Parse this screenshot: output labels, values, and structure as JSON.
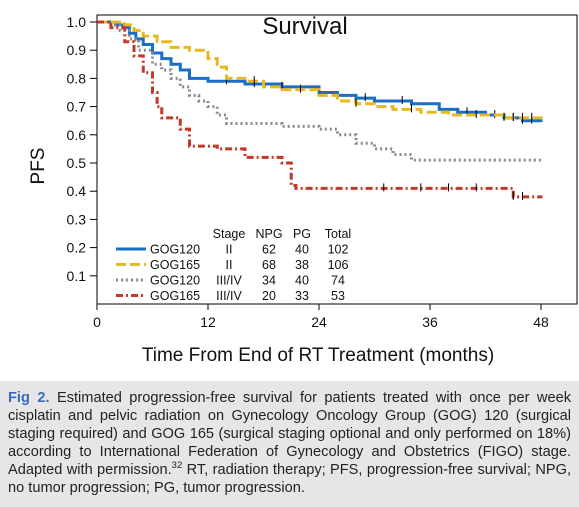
{
  "chart_data": {
    "type": "line",
    "title": "Survival",
    "xlabel": "Time From End of RT Treatment (months)",
    "ylabel": "PFS",
    "xlim": [
      0,
      48
    ],
    "ylim": [
      0,
      1.0
    ],
    "x_ticks": [
      "0",
      "12",
      "24",
      "36",
      "48"
    ],
    "y_ticks": [
      "0.1",
      "0.2",
      "0.3",
      "0.4",
      "0.5",
      "0.6",
      "0.7",
      "0.8",
      "0.9",
      "1.0"
    ],
    "grid": false,
    "legend_position": "lower-left",
    "legend_headers": [
      "Stage",
      "NPG",
      "PG",
      "Total"
    ],
    "series": [
      {
        "name": "GOG120",
        "stage": "II",
        "npg": "62",
        "pg": "40",
        "total": "102",
        "color": "#1a6fc4",
        "style": "solid",
        "points": [
          [
            0,
            1.0
          ],
          [
            2,
            0.99
          ],
          [
            2.8,
            0.98
          ],
          [
            3.5,
            0.96
          ],
          [
            4.2,
            0.94
          ],
          [
            5,
            0.92
          ],
          [
            6,
            0.89
          ],
          [
            7,
            0.87
          ],
          [
            8,
            0.85
          ],
          [
            9,
            0.83
          ],
          [
            10,
            0.8
          ],
          [
            12,
            0.79
          ],
          [
            16,
            0.78
          ],
          [
            20,
            0.77
          ],
          [
            24,
            0.75
          ],
          [
            26,
            0.74
          ],
          [
            28,
            0.73
          ],
          [
            30,
            0.72
          ],
          [
            34,
            0.71
          ],
          [
            37,
            0.69
          ],
          [
            39,
            0.68
          ],
          [
            42,
            0.67
          ],
          [
            44,
            0.66
          ],
          [
            46,
            0.65
          ],
          [
            48,
            0.645
          ]
        ],
        "censor": [
          14,
          17,
          20,
          29,
          33,
          40,
          43,
          45,
          46,
          47
        ]
      },
      {
        "name": "GOG165",
        "stage": "II",
        "npg": "68",
        "pg": "38",
        "total": "106",
        "color": "#e8b820",
        "style": "dashed",
        "points": [
          [
            0,
            1.0
          ],
          [
            3,
            0.99
          ],
          [
            4,
            0.97
          ],
          [
            5,
            0.95
          ],
          [
            6.5,
            0.93
          ],
          [
            8,
            0.91
          ],
          [
            10,
            0.9
          ],
          [
            12,
            0.87
          ],
          [
            13,
            0.84
          ],
          [
            14,
            0.8
          ],
          [
            16,
            0.79
          ],
          [
            18,
            0.77
          ],
          [
            20,
            0.76
          ],
          [
            24,
            0.74
          ],
          [
            26,
            0.72
          ],
          [
            28,
            0.71
          ],
          [
            30,
            0.7
          ],
          [
            32,
            0.69
          ],
          [
            35,
            0.68
          ],
          [
            38,
            0.67
          ],
          [
            41,
            0.67
          ],
          [
            44,
            0.66
          ],
          [
            48,
            0.655
          ]
        ],
        "censor": [
          17,
          22,
          28,
          34,
          41,
          44,
          45,
          46,
          47
        ]
      },
      {
        "name": "GOG120",
        "stage": "III/IV",
        "npg": "34",
        "pg": "40",
        "total": "74",
        "color": "#8a8a8a",
        "style": "dotted",
        "points": [
          [
            0,
            1.0
          ],
          [
            1.5,
            0.99
          ],
          [
            2.5,
            0.97
          ],
          [
            3.5,
            0.94
          ],
          [
            4.5,
            0.9
          ],
          [
            6,
            0.85
          ],
          [
            7,
            0.83
          ],
          [
            8,
            0.8
          ],
          [
            9,
            0.77
          ],
          [
            10,
            0.74
          ],
          [
            11,
            0.72
          ],
          [
            12,
            0.7
          ],
          [
            13,
            0.67
          ],
          [
            14,
            0.64
          ],
          [
            20,
            0.63
          ],
          [
            24,
            0.62
          ],
          [
            26,
            0.6
          ],
          [
            28,
            0.57
          ],
          [
            30,
            0.55
          ],
          [
            32,
            0.53
          ],
          [
            34,
            0.51
          ],
          [
            48,
            0.51
          ]
        ]
      },
      {
        "name": "GOG165",
        "stage": "III/IV",
        "npg": "20",
        "pg": "33",
        "total": "53",
        "color": "#c0392b",
        "style": "dash-dot",
        "points": [
          [
            0,
            1.0
          ],
          [
            1.5,
            0.98
          ],
          [
            3,
            0.93
          ],
          [
            4,
            0.88
          ],
          [
            5,
            0.82
          ],
          [
            6,
            0.75
          ],
          [
            6.5,
            0.7
          ],
          [
            7,
            0.66
          ],
          [
            9,
            0.62
          ],
          [
            10,
            0.56
          ],
          [
            13,
            0.55
          ],
          [
            16,
            0.52
          ],
          [
            20,
            0.5
          ],
          [
            21,
            0.42
          ],
          [
            21.5,
            0.41
          ],
          [
            44,
            0.41
          ],
          [
            45,
            0.38
          ],
          [
            48,
            0.375
          ]
        ],
        "censor": [
          31,
          35,
          38,
          41,
          45,
          46
        ]
      }
    ]
  },
  "caption": {
    "fig_label": "Fig 2.",
    "text_main": " Estimated progression-free survival for patients treated with once per week cisplatin and pelvic radiation on Gynecology Oncology Group (GOG) 120 (surgical staging required) and GOG 165 (surgical staging optional and only performed on 18%) according to International Federation of Gynecology and Obstetrics (FIGO) stage. Adapted with permission.",
    "reference": "32",
    "text_end": " RT, radiation therapy; PFS, progression-free survival; NPG, no tumor progression; PG, tumor progression."
  }
}
